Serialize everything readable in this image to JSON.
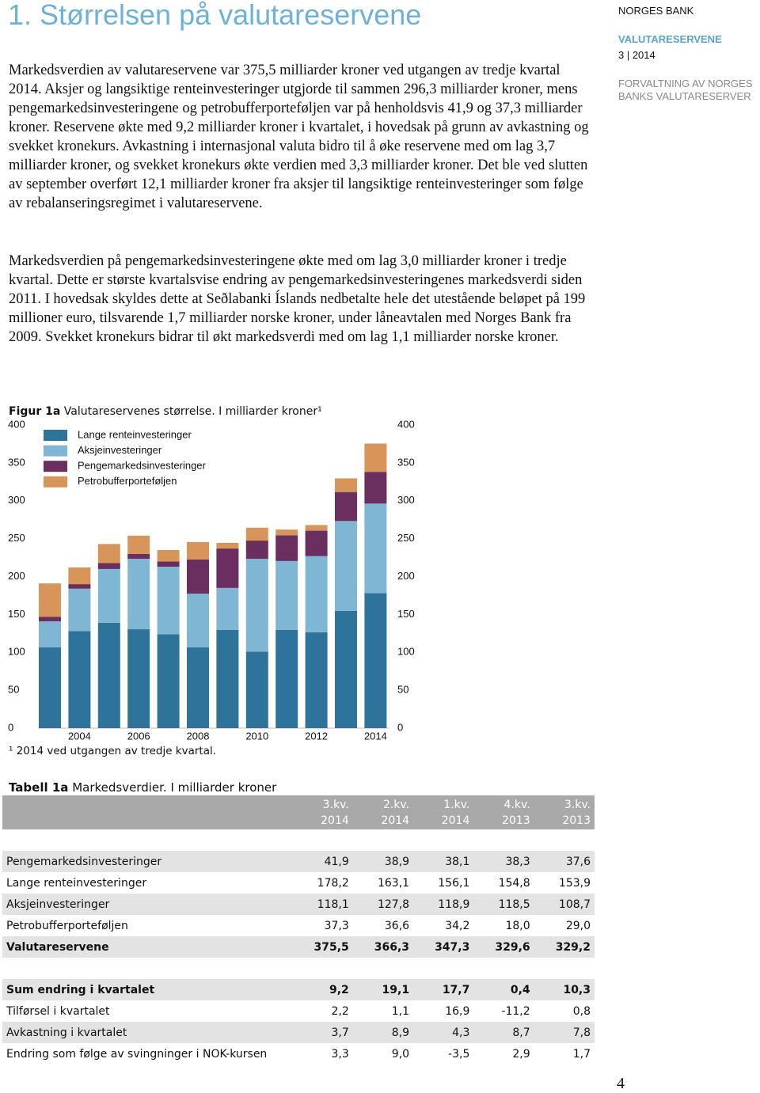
{
  "header": {
    "title": "1. Størrelsen på valutareservene"
  },
  "sidebar": {
    "publisher": "NORGES BANK",
    "report": "VALUTARESERVENE",
    "issue": "3 | 2014",
    "subtitle": "FORVALTNING AV NORGES BANKS VALUTARESERVER"
  },
  "paragraphs": [
    "Markedsverdien av valutareservene var 375,5 milliarder kroner ved utgangen av tredje kvartal 2014. Aksjer og langsiktige renteinvesteringer utgjorde til sammen 296,3 milliarder kroner, mens pengemarkedsinvesteringene og petrobufferporteføljen var på henholdsvis 41,9 og 37,3 milliarder kroner. Reservene økte med 9,2 milliarder kroner i kvartalet, i hovedsak på grunn av avkastning og svekket kronekurs. Avkastning i internasjonal valuta bidro til å øke reservene med om lag 3,7 milliarder kroner, og svekket kronekurs økte verdien med 3,3 milliarder kroner. Det ble ved slutten av september overført 12,1 milliarder kroner fra aksjer til langsiktige renteinvesteringer som følge av rebalanseringsregimet i valutareservene.",
    "Markedsverdien på pengemarkedsinvesteringene økte med om lag 3,0 milliarder kroner i tredje kvartal. Dette er største kvartalsvise endring av pengemarkedsinvesteringenes markedsverdi siden 2011. I hovedsak skyldes dette at Seðlabanki Íslands nedbetalte hele det utestående beløpet på 199 millioner euro, tilsvarende 1,7 milliarder norske kroner, under låneavtalen med Norges Bank fra 2009. Svekket kronekurs bidrar til økt markedsverdi med om lag 1,1 milliarder norske kroner."
  ],
  "chart_data": {
    "type": "stacked-bar",
    "label": "Figur 1a",
    "title": "Valutareservenes størrelse. I milliarder kroner¹",
    "categories": [
      null,
      "2004",
      null,
      "2006",
      null,
      "2008",
      null,
      "2010",
      null,
      "2012",
      null,
      "2014"
    ],
    "series": [
      {
        "name": "Lange renteinvesteringer",
        "color": "#2e7399",
        "values": [
          106.5,
          128,
          139,
          130.5,
          124,
          106.5,
          129.5,
          101,
          129.5,
          126.5,
          154.8,
          178.2
        ]
      },
      {
        "name": "Aksjeinvesteringer",
        "color": "#7fb6d4",
        "values": [
          34.5,
          56,
          71,
          93,
          89,
          71,
          55.5,
          122.5,
          91,
          100.5,
          118.5,
          118.1
        ]
      },
      {
        "name": "Pengemarkedsinvesteringer",
        "color": "#6b2f5f",
        "values": [
          6,
          6,
          8,
          6.5,
          7,
          45,
          52,
          24,
          34,
          33.5,
          38.3,
          41.9
        ]
      },
      {
        "name": "Petrobufferporteføljen",
        "color": "#d7955a",
        "values": [
          44,
          22,
          25,
          24,
          15,
          23,
          7.5,
          17,
          7.5,
          7.5,
          18.0,
          37.3
        ]
      }
    ],
    "ylim": [
      0,
      400
    ],
    "yticks": [
      0,
      50,
      100,
      150,
      200,
      250,
      300,
      350,
      400
    ],
    "legend": "top-left"
  },
  "footnote": "¹ 2014 ved utgangen av tredje kvartal.",
  "table": {
    "label": "Tabell 1a",
    "caption": "Markedsverdier. I milliarder kroner",
    "columns": [
      [
        "3.kv.",
        "2014"
      ],
      [
        "2.kv.",
        "2014"
      ],
      [
        "1.kv.",
        "2014"
      ],
      [
        "4.kv.",
        "2013"
      ],
      [
        "3.kv.",
        "2013"
      ]
    ],
    "groups": [
      {
        "rows": [
          {
            "label": "Pengemarkedsinvesteringer",
            "values": [
              "41,9",
              "38,9",
              "38,1",
              "38,3",
              "37,6"
            ],
            "bold": false
          },
          {
            "label": "Lange renteinvesteringer",
            "values": [
              "178,2",
              "163,1",
              "156,1",
              "154,8",
              "153,9"
            ],
            "bold": false
          },
          {
            "label": "Aksjeinvesteringer",
            "values": [
              "118,1",
              "127,8",
              "118,9",
              "118,5",
              "108,7"
            ],
            "bold": false
          },
          {
            "label": "Petrobufferporteføljen",
            "values": [
              "37,3",
              "36,6",
              "34,2",
              "18,0",
              "29,0"
            ],
            "bold": false
          },
          {
            "label": "Valutareservene",
            "values": [
              "375,5",
              "366,3",
              "347,3",
              "329,6",
              "329,2"
            ],
            "bold": true
          }
        ]
      },
      {
        "rows": [
          {
            "label": "Sum endring i kvartalet",
            "values": [
              "9,2",
              "19,1",
              "17,7",
              "0,4",
              "10,3"
            ],
            "bold": true
          },
          {
            "label": "Tilførsel i kvartalet",
            "values": [
              "2,2",
              "1,1",
              "16,9",
              "-11,2",
              "0,8"
            ],
            "bold": false
          },
          {
            "label": "Avkastning i kvartalet",
            "values": [
              "3,7",
              "8,9",
              "4,3",
              "8,7",
              "7,8"
            ],
            "bold": false
          },
          {
            "label": "Endring som følge av svingninger i NOK-kursen",
            "values": [
              "3,3",
              "9,0",
              "-3,5",
              "2,9",
              "1,7"
            ],
            "bold": false
          }
        ]
      }
    ]
  },
  "page_number": "4"
}
